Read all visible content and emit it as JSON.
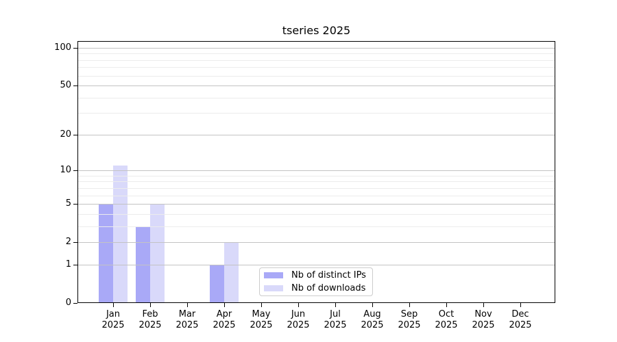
{
  "chart_data": {
    "type": "bar",
    "title": "tseries 2025",
    "categories": [
      "Jan",
      "Feb",
      "Mar",
      "Apr",
      "May",
      "Jun",
      "Jul",
      "Aug",
      "Sep",
      "Oct",
      "Nov",
      "Dec"
    ],
    "year_label": "2025",
    "series": [
      {
        "name": "Nb of distinct IPs",
        "color": "#a9a9f7",
        "values": [
          5,
          3,
          0,
          1,
          0,
          0,
          0,
          0,
          0,
          0,
          0,
          0
        ]
      },
      {
        "name": "Nb of downloads",
        "color": "#d9d9fa",
        "values": [
          11,
          5,
          0,
          2,
          0,
          0,
          0,
          0,
          0,
          0,
          0,
          0
        ]
      }
    ],
    "y_axis": {
      "scale": "log10(value+1)",
      "labeled_ticks": [
        0,
        1,
        2,
        5,
        10,
        20,
        50,
        100
      ],
      "minor_gridlines": [
        3,
        4,
        6,
        7,
        8,
        9,
        30,
        40,
        60,
        70,
        80,
        90
      ],
      "ylim": [
        0,
        113
      ]
    },
    "legend": {
      "position": "inside-lower-center",
      "entries": [
        "Nb of distinct IPs",
        "Nb of downloads"
      ]
    },
    "colors": {
      "major_grid": "#c3c3c3",
      "minor_grid": "#ececec",
      "axis_frame": "#000000",
      "text": "#000000",
      "background": "#ffffff"
    }
  }
}
